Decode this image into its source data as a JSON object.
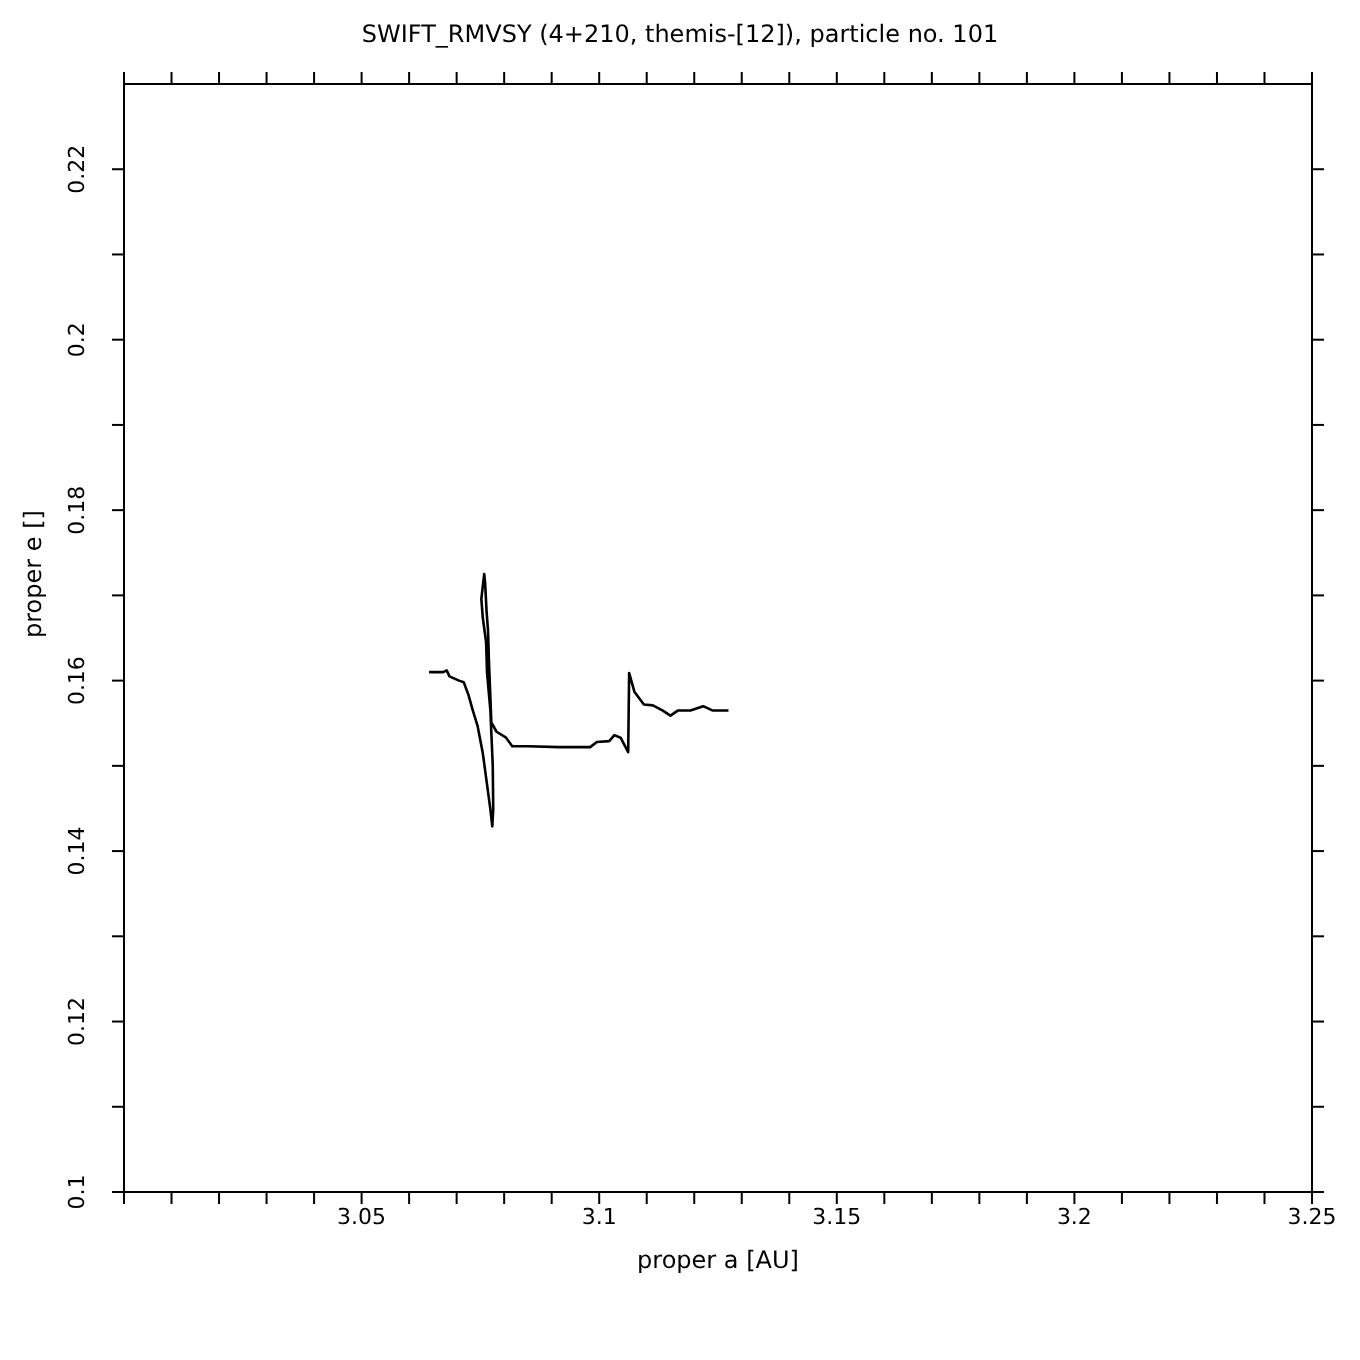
{
  "chart_data": {
    "type": "line",
    "title": "SWIFT_RMVSY (4+210, themis-[12]), particle no. 101",
    "xlabel": "proper a [AU]",
    "ylabel": "proper e []",
    "xlim": [
      3.0,
      3.25
    ],
    "ylim": [
      0.1,
      0.23
    ],
    "xticks": [
      {
        "value": 3.0,
        "label": null
      },
      {
        "value": 3.01,
        "label": null
      },
      {
        "value": 3.02,
        "label": null
      },
      {
        "value": 3.03,
        "label": null
      },
      {
        "value": 3.04,
        "label": null
      },
      3.05,
      {
        "value": 3.06,
        "label": null
      },
      {
        "value": 3.07,
        "label": null
      },
      {
        "value": 3.08,
        "label": null
      },
      {
        "value": 3.09,
        "label": null
      },
      3.1,
      {
        "value": 3.11,
        "label": null
      },
      {
        "value": 3.12,
        "label": null
      },
      {
        "value": 3.13,
        "label": null
      },
      {
        "value": 3.14,
        "label": null
      },
      3.15,
      {
        "value": 3.16,
        "label": null
      },
      {
        "value": 3.17,
        "label": null
      },
      {
        "value": 3.18,
        "label": null
      },
      {
        "value": 3.19,
        "label": null
      },
      3.2,
      {
        "value": 3.21,
        "label": null
      },
      {
        "value": 3.22,
        "label": null
      },
      {
        "value": 3.23,
        "label": null
      },
      {
        "value": 3.24,
        "label": null
      },
      3.25
    ],
    "yticks": [
      0.1,
      {
        "value": 0.11,
        "label": null
      },
      0.12,
      {
        "value": 0.13,
        "label": null
      },
      0.14,
      {
        "value": 0.15,
        "label": null
      },
      0.16,
      {
        "value": 0.17,
        "label": null
      },
      0.18,
      {
        "value": 0.19,
        "label": null
      },
      0.2,
      {
        "value": 0.21,
        "label": null
      },
      0.22
    ],
    "grid": false,
    "legend": false,
    "marker": "none",
    "line_style": "solid",
    "series": [
      {
        "color": "#000000",
        "x": [
          3.0642,
          3.0672,
          3.0679,
          3.0685,
          3.0705,
          3.0715,
          3.0725,
          3.0734,
          3.0744,
          3.0755,
          3.0764,
          3.0771,
          3.0775,
          3.0777,
          3.0776,
          3.0771,
          3.0764,
          3.0762,
          3.0755,
          3.0752,
          3.0758,
          3.076,
          3.0763,
          3.0766,
          3.0768,
          3.0771,
          3.0773,
          3.0784,
          3.0804,
          3.0817,
          3.085,
          3.0916,
          3.0981,
          3.0995,
          3.1021,
          3.1032,
          3.1045,
          3.1061,
          3.1063,
          3.1074,
          3.1094,
          3.1113,
          3.1133,
          3.115,
          3.1166,
          3.1192,
          3.1219,
          3.1238,
          3.1272
        ],
        "values": [
          0.161,
          0.161,
          0.1612,
          0.1605,
          0.16,
          0.1598,
          0.1583,
          0.1565,
          0.1547,
          0.1515,
          0.1478,
          0.1449,
          0.1429,
          0.1449,
          0.15,
          0.1565,
          0.1609,
          0.1645,
          0.1674,
          0.1696,
          0.1725,
          0.1714,
          0.1681,
          0.1659,
          0.1623,
          0.158,
          0.1551,
          0.154,
          0.1533,
          0.1523,
          0.1523,
          0.1522,
          0.1522,
          0.1528,
          0.1529,
          0.1536,
          0.1533,
          0.1516,
          0.1609,
          0.1587,
          0.1572,
          0.1571,
          0.1565,
          0.1559,
          0.1565,
          0.1565,
          0.157,
          0.1565,
          0.1565
        ]
      }
    ]
  }
}
